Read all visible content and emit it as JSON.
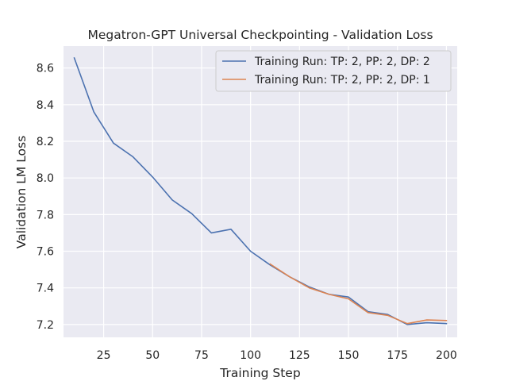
{
  "chart_data": {
    "type": "line",
    "title": "Megatron-GPT Universal Checkpointing - Validation Loss",
    "xlabel": "Training Step",
    "ylabel": "Validation LM Loss",
    "xlim": [
      4.5,
      205.5
    ],
    "ylim": [
      7.13,
      8.72
    ],
    "xticks": [
      25,
      50,
      75,
      100,
      125,
      150,
      175,
      200
    ],
    "yticks": [
      7.2,
      7.4,
      7.6,
      7.8,
      8.0,
      8.2,
      8.4,
      8.6
    ],
    "ytick_labels": [
      "7.2",
      "7.4",
      "7.6",
      "7.8",
      "8.0",
      "8.2",
      "8.4",
      "8.6"
    ],
    "grid": true,
    "background": "#eaeaf2",
    "legend_position": "top-right",
    "series": [
      {
        "name": "Training Run: TP: 2, PP: 2, DP: 2",
        "color": "#4c72b0",
        "x": [
          10,
          20,
          30,
          40,
          50,
          60,
          70,
          80,
          90,
          100,
          110,
          120,
          130,
          140,
          150,
          160,
          170,
          180,
          190,
          200
        ],
        "y": [
          8.655,
          8.36,
          8.19,
          8.115,
          8.005,
          7.88,
          7.805,
          7.7,
          7.72,
          7.6,
          7.525,
          7.46,
          7.405,
          7.365,
          7.35,
          7.27,
          7.255,
          7.2,
          7.21,
          7.205
        ]
      },
      {
        "name": "Training Run: TP: 2, PP: 2, DP: 1",
        "color": "#dd8452",
        "x": [
          110,
          120,
          130,
          140,
          150,
          160,
          170,
          180,
          190,
          200
        ],
        "y": [
          7.53,
          7.46,
          7.4,
          7.365,
          7.34,
          7.265,
          7.25,
          7.205,
          7.225,
          7.222
        ]
      }
    ]
  }
}
